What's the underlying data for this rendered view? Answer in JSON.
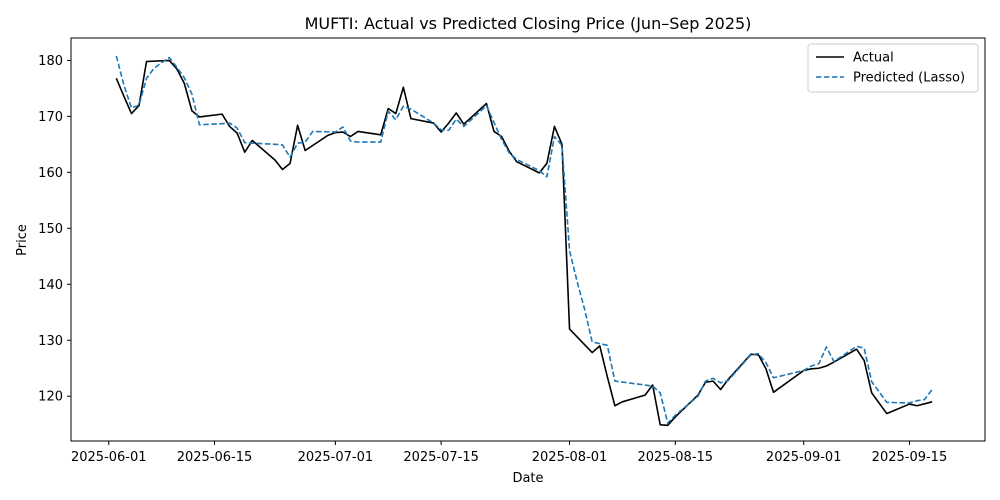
{
  "chart_data": {
    "type": "line",
    "title": "MUFTI: Actual vs Predicted Closing Price (Jun–Sep 2025)",
    "xlabel": "Date",
    "ylabel": "Price",
    "xlim": [
      "2025-05-27",
      "2025-09-25"
    ],
    "ylim": [
      112,
      184
    ],
    "x_ticks": [
      "2025-06-01",
      "2025-06-15",
      "2025-07-01",
      "2025-07-15",
      "2025-08-01",
      "2025-08-15",
      "2025-09-01",
      "2025-09-15"
    ],
    "y_ticks": [
      120,
      130,
      140,
      150,
      160,
      170,
      180
    ],
    "grid": false,
    "legend_position": "top-right",
    "series": [
      {
        "name": "Actual",
        "color": "#000000",
        "style": "solid",
        "points": [
          [
            "2025-06-02",
            176.8
          ],
          [
            "2025-06-03",
            173.6
          ],
          [
            "2025-06-04",
            170.5
          ],
          [
            "2025-06-05",
            171.9
          ],
          [
            "2025-06-06",
            179.8
          ],
          [
            "2025-06-09",
            180.0
          ],
          [
            "2025-06-10",
            178.5
          ],
          [
            "2025-06-11",
            175.9
          ],
          [
            "2025-06-12",
            171.0
          ],
          [
            "2025-06-13",
            169.9
          ],
          [
            "2025-06-16",
            170.4
          ],
          [
            "2025-06-17",
            168.2
          ],
          [
            "2025-06-18",
            167.0
          ],
          [
            "2025-06-19",
            163.6
          ],
          [
            "2025-06-20",
            165.7
          ],
          [
            "2025-06-23",
            162.2
          ],
          [
            "2025-06-24",
            160.5
          ],
          [
            "2025-06-25",
            161.6
          ],
          [
            "2025-06-26",
            168.4
          ],
          [
            "2025-06-27",
            163.9
          ],
          [
            "2025-06-30",
            166.6
          ],
          [
            "2025-07-01",
            167.1
          ],
          [
            "2025-07-02",
            167.2
          ],
          [
            "2025-07-03",
            166.4
          ],
          [
            "2025-07-04",
            167.3
          ],
          [
            "2025-07-07",
            166.7
          ],
          [
            "2025-07-08",
            171.4
          ],
          [
            "2025-07-09",
            170.5
          ],
          [
            "2025-07-10",
            175.2
          ],
          [
            "2025-07-11",
            169.6
          ],
          [
            "2025-07-14",
            168.8
          ],
          [
            "2025-07-15",
            167.2
          ],
          [
            "2025-07-16",
            168.8
          ],
          [
            "2025-07-17",
            170.6
          ],
          [
            "2025-07-18",
            168.6
          ],
          [
            "2025-07-21",
            172.3
          ],
          [
            "2025-07-22",
            167.3
          ],
          [
            "2025-07-23",
            166.4
          ],
          [
            "2025-07-24",
            163.8
          ],
          [
            "2025-07-25",
            161.9
          ],
          [
            "2025-07-28",
            159.9
          ],
          [
            "2025-07-29",
            161.6
          ],
          [
            "2025-07-30",
            168.2
          ],
          [
            "2025-07-31",
            165.0
          ],
          [
            "2025-08-01",
            132.0
          ],
          [
            "2025-08-04",
            127.8
          ],
          [
            "2025-08-05",
            129.0
          ],
          [
            "2025-08-06",
            123.5
          ],
          [
            "2025-08-07",
            118.3
          ],
          [
            "2025-08-08",
            119.0
          ],
          [
            "2025-08-11",
            120.2
          ],
          [
            "2025-08-12",
            122.0
          ],
          [
            "2025-08-13",
            114.9
          ],
          [
            "2025-08-14",
            114.8
          ],
          [
            "2025-08-15",
            116.3
          ],
          [
            "2025-08-18",
            120.2
          ],
          [
            "2025-08-19",
            122.5
          ],
          [
            "2025-08-20",
            122.7
          ],
          [
            "2025-08-21",
            121.2
          ],
          [
            "2025-08-22",
            123.0
          ],
          [
            "2025-08-25",
            127.5
          ],
          [
            "2025-08-26",
            127.4
          ],
          [
            "2025-08-27",
            124.9
          ],
          [
            "2025-08-28",
            120.7
          ],
          [
            "2025-09-01",
            124.6
          ],
          [
            "2025-09-02",
            124.9
          ],
          [
            "2025-09-03",
            125.0
          ],
          [
            "2025-09-04",
            125.4
          ],
          [
            "2025-09-05",
            126.1
          ],
          [
            "2025-09-08",
            128.4
          ],
          [
            "2025-09-09",
            126.4
          ],
          [
            "2025-09-10",
            120.6
          ],
          [
            "2025-09-12",
            116.9
          ],
          [
            "2025-09-15",
            118.6
          ],
          [
            "2025-09-16",
            118.3
          ],
          [
            "2025-09-18",
            119.0
          ]
        ]
      },
      {
        "name": "Predicted (Lasso)",
        "color": "#1f77b4",
        "style": "dashed",
        "points": [
          [
            "2025-06-02",
            180.8
          ],
          [
            "2025-06-03",
            175.6
          ],
          [
            "2025-06-04",
            171.5
          ],
          [
            "2025-06-05",
            172.0
          ],
          [
            "2025-06-06",
            176.8
          ],
          [
            "2025-06-07",
            178.6
          ],
          [
            "2025-06-08",
            179.6
          ],
          [
            "2025-06-09",
            180.5
          ],
          [
            "2025-06-10",
            178.8
          ],
          [
            "2025-06-11",
            176.9
          ],
          [
            "2025-06-12",
            174.0
          ],
          [
            "2025-06-13",
            168.5
          ],
          [
            "2025-06-16",
            168.7
          ],
          [
            "2025-06-17",
            168.8
          ],
          [
            "2025-06-18",
            167.9
          ],
          [
            "2025-06-19",
            165.3
          ],
          [
            "2025-06-23",
            165.0
          ],
          [
            "2025-06-24",
            164.9
          ],
          [
            "2025-06-25",
            162.7
          ],
          [
            "2025-06-26",
            165.2
          ],
          [
            "2025-06-27",
            165.4
          ],
          [
            "2025-06-28",
            167.3
          ],
          [
            "2025-07-01",
            167.2
          ],
          [
            "2025-07-02",
            168.1
          ],
          [
            "2025-07-03",
            165.6
          ],
          [
            "2025-07-04",
            165.4
          ],
          [
            "2025-07-07",
            165.4
          ],
          [
            "2025-07-08",
            170.9
          ],
          [
            "2025-07-09",
            169.4
          ],
          [
            "2025-07-10",
            171.8
          ],
          [
            "2025-07-11",
            171.3
          ],
          [
            "2025-07-14",
            168.8
          ],
          [
            "2025-07-15",
            167.6
          ],
          [
            "2025-07-16",
            167.5
          ],
          [
            "2025-07-17",
            169.5
          ],
          [
            "2025-07-18",
            168.2
          ],
          [
            "2025-07-21",
            171.9
          ],
          [
            "2025-07-22",
            168.9
          ],
          [
            "2025-07-23",
            165.9
          ],
          [
            "2025-07-24",
            163.5
          ],
          [
            "2025-07-25",
            162.3
          ],
          [
            "2025-07-28",
            160.3
          ],
          [
            "2025-07-29",
            159.2
          ],
          [
            "2025-07-30",
            166.4
          ],
          [
            "2025-07-31",
            164.8
          ],
          [
            "2025-08-01",
            146.0
          ],
          [
            "2025-08-02",
            140.5
          ],
          [
            "2025-08-03",
            135.5
          ],
          [
            "2025-08-04",
            129.7
          ],
          [
            "2025-08-05",
            129.4
          ],
          [
            "2025-08-06",
            129.1
          ],
          [
            "2025-08-07",
            122.7
          ],
          [
            "2025-08-11",
            122.0
          ],
          [
            "2025-08-12",
            121.8
          ],
          [
            "2025-08-13",
            120.6
          ],
          [
            "2025-08-14",
            115.2
          ],
          [
            "2025-08-15",
            116.6
          ],
          [
            "2025-08-18",
            120.0
          ],
          [
            "2025-08-19",
            122.7
          ],
          [
            "2025-08-20",
            123.2
          ],
          [
            "2025-08-21",
            122.4
          ],
          [
            "2025-08-22",
            122.8
          ],
          [
            "2025-08-25",
            127.4
          ],
          [
            "2025-08-26",
            127.6
          ],
          [
            "2025-08-27",
            126.0
          ],
          [
            "2025-08-28",
            123.3
          ],
          [
            "2025-09-01",
            124.6
          ],
          [
            "2025-09-02",
            125.4
          ],
          [
            "2025-09-03",
            125.8
          ],
          [
            "2025-09-04",
            128.8
          ],
          [
            "2025-09-05",
            126.2
          ],
          [
            "2025-09-08",
            128.9
          ],
          [
            "2025-09-09",
            128.6
          ],
          [
            "2025-09-10",
            122.6
          ],
          [
            "2025-09-12",
            118.9
          ],
          [
            "2025-09-15",
            118.8
          ],
          [
            "2025-09-16",
            119.2
          ],
          [
            "2025-09-17",
            119.4
          ],
          [
            "2025-09-18",
            121.2
          ]
        ]
      }
    ]
  }
}
